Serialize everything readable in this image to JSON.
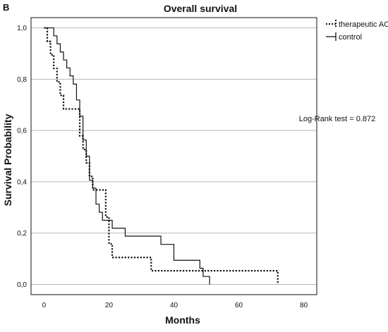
{
  "panel_label": "B",
  "chart_data": {
    "type": "line",
    "subtype": "kaplan-meier-step",
    "title": "Overall survival",
    "xlabel": "Months",
    "ylabel": "Survival Probability",
    "xlim": [
      -4,
      84
    ],
    "ylim": [
      -0.04,
      1.04
    ],
    "x_ticks": [
      0,
      20,
      40,
      60,
      80
    ],
    "y_ticks": [
      0.0,
      0.2,
      0.4,
      0.6,
      0.8,
      1.0
    ],
    "y_tick_labels": [
      "0,0",
      "0,2",
      "0,4",
      "0,6",
      "0,8",
      "1,0"
    ],
    "grid": "horizontal",
    "legend": "top-right",
    "annotation": "Log-Rank test = 0.872",
    "series": [
      {
        "name": "therapeutic AC",
        "style": "dotted",
        "color": "#111111",
        "x": [
          0,
          1,
          2,
          3,
          4,
          5,
          6,
          7,
          11,
          12,
          13,
          14,
          15,
          16,
          19,
          20,
          21,
          24,
          33,
          72
        ],
        "y": [
          1.0,
          0.947,
          0.895,
          0.842,
          0.789,
          0.737,
          0.684,
          0.684,
          0.579,
          0.526,
          0.474,
          0.421,
          0.368,
          0.368,
          0.263,
          0.158,
          0.105,
          0.105,
          0.053,
          0.0
        ]
      },
      {
        "name": "control",
        "style": "solid",
        "color": "#111111",
        "x": [
          0,
          3,
          4,
          5,
          6,
          7,
          8,
          9,
          10,
          11,
          12,
          13,
          14,
          15,
          16,
          17,
          18,
          21,
          25,
          36,
          40,
          48,
          49,
          51
        ],
        "y": [
          1.0,
          0.969,
          0.938,
          0.906,
          0.875,
          0.844,
          0.813,
          0.781,
          0.719,
          0.656,
          0.563,
          0.5,
          0.406,
          0.375,
          0.313,
          0.281,
          0.25,
          0.219,
          0.188,
          0.156,
          0.094,
          0.063,
          0.031,
          0.0
        ]
      }
    ]
  }
}
